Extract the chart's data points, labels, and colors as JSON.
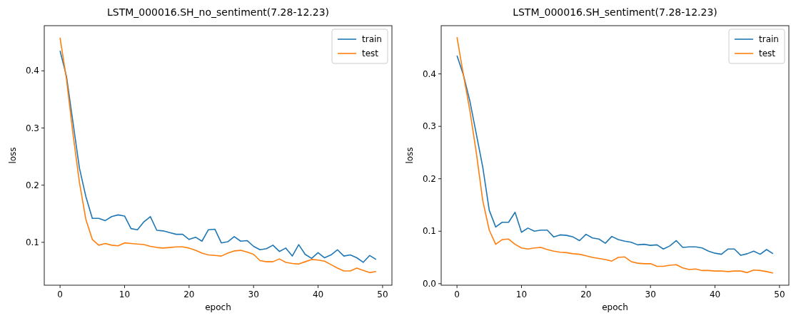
{
  "chart_data": [
    {
      "type": "line",
      "title": "LSTM_000016.SH_no_sentiment(7.28-12.23)",
      "xlabel": "epoch",
      "ylabel": "loss",
      "x": [
        0,
        1,
        2,
        3,
        4,
        5,
        6,
        7,
        8,
        9,
        10,
        11,
        12,
        13,
        14,
        15,
        16,
        17,
        18,
        19,
        20,
        21,
        22,
        23,
        24,
        25,
        26,
        27,
        28,
        29,
        30,
        31,
        32,
        33,
        34,
        35,
        36,
        37,
        38,
        39,
        40,
        41,
        42,
        43,
        44,
        45,
        46,
        47,
        48,
        49
      ],
      "xlim": [
        -2.45,
        51.45
      ],
      "xticks": [
        0,
        10,
        20,
        30,
        40,
        50
      ],
      "ylim": [
        0.025,
        0.479
      ],
      "yticks": [
        0.1,
        0.2,
        0.3,
        0.4
      ],
      "legend": "top right",
      "grid": false,
      "series": [
        {
          "name": "train",
          "color": "#1f77b4",
          "values": [
            0.435,
            0.39,
            0.31,
            0.23,
            0.18,
            0.142,
            0.142,
            0.138,
            0.145,
            0.148,
            0.146,
            0.124,
            0.122,
            0.136,
            0.145,
            0.121,
            0.12,
            0.117,
            0.114,
            0.114,
            0.105,
            0.109,
            0.102,
            0.122,
            0.123,
            0.099,
            0.101,
            0.11,
            0.102,
            0.103,
            0.093,
            0.087,
            0.089,
            0.095,
            0.084,
            0.09,
            0.076,
            0.096,
            0.079,
            0.072,
            0.082,
            0.073,
            0.078,
            0.087,
            0.076,
            0.078,
            0.073,
            0.065,
            0.077,
            0.07
          ]
        },
        {
          "name": "test",
          "color": "#ff7f0e",
          "values": [
            0.458,
            0.385,
            0.29,
            0.205,
            0.14,
            0.105,
            0.095,
            0.098,
            0.095,
            0.094,
            0.099,
            0.098,
            0.097,
            0.096,
            0.093,
            0.091,
            0.09,
            0.091,
            0.092,
            0.092,
            0.09,
            0.086,
            0.081,
            0.078,
            0.077,
            0.076,
            0.081,
            0.085,
            0.086,
            0.083,
            0.079,
            0.068,
            0.066,
            0.066,
            0.071,
            0.065,
            0.063,
            0.062,
            0.066,
            0.07,
            0.069,
            0.067,
            0.061,
            0.055,
            0.05,
            0.05,
            0.055,
            0.051,
            0.047,
            0.049
          ]
        }
      ]
    },
    {
      "type": "line",
      "title": "LSTM_000016.SH_sentiment(7.28-12.23)",
      "xlabel": "epoch",
      "ylabel": "loss",
      "x": [
        0,
        1,
        2,
        3,
        4,
        5,
        6,
        7,
        8,
        9,
        10,
        11,
        12,
        13,
        14,
        15,
        16,
        17,
        18,
        19,
        20,
        21,
        22,
        23,
        24,
        25,
        26,
        27,
        28,
        29,
        30,
        31,
        32,
        33,
        34,
        35,
        36,
        37,
        38,
        39,
        40,
        41,
        42,
        43,
        44,
        45,
        46,
        47,
        48,
        49
      ],
      "xlim": [
        -2.45,
        51.45
      ],
      "xticks": [
        0,
        10,
        20,
        30,
        40,
        50
      ],
      "ylim": [
        -0.003,
        0.492
      ],
      "yticks": [
        {
          "value": 0,
          "label": "0.0"
        },
        0.1,
        0.2,
        0.3,
        0.4
      ],
      "legend": "top right",
      "grid": false,
      "series": [
        {
          "name": "train",
          "color": "#1f77b4",
          "values": [
            0.435,
            0.398,
            0.348,
            0.285,
            0.222,
            0.14,
            0.108,
            0.117,
            0.117,
            0.136,
            0.098,
            0.106,
            0.1,
            0.102,
            0.102,
            0.089,
            0.093,
            0.092,
            0.089,
            0.082,
            0.094,
            0.087,
            0.085,
            0.077,
            0.09,
            0.084,
            0.081,
            0.079,
            0.074,
            0.075,
            0.073,
            0.074,
            0.066,
            0.072,
            0.082,
            0.069,
            0.07,
            0.07,
            0.068,
            0.062,
            0.058,
            0.056,
            0.066,
            0.066,
            0.054,
            0.057,
            0.062,
            0.056,
            0.065,
            0.057
          ]
        },
        {
          "name": "test",
          "color": "#ff7f0e",
          "values": [
            0.47,
            0.398,
            0.33,
            0.249,
            0.158,
            0.102,
            0.075,
            0.084,
            0.085,
            0.075,
            0.068,
            0.066,
            0.068,
            0.069,
            0.065,
            0.062,
            0.06,
            0.059,
            0.057,
            0.056,
            0.053,
            0.05,
            0.048,
            0.046,
            0.043,
            0.05,
            0.051,
            0.042,
            0.039,
            0.038,
            0.038,
            0.033,
            0.033,
            0.035,
            0.036,
            0.03,
            0.027,
            0.028,
            0.025,
            0.025,
            0.024,
            0.024,
            0.023,
            0.024,
            0.024,
            0.021,
            0.026,
            0.025,
            0.023,
            0.02
          ]
        }
      ]
    }
  ]
}
